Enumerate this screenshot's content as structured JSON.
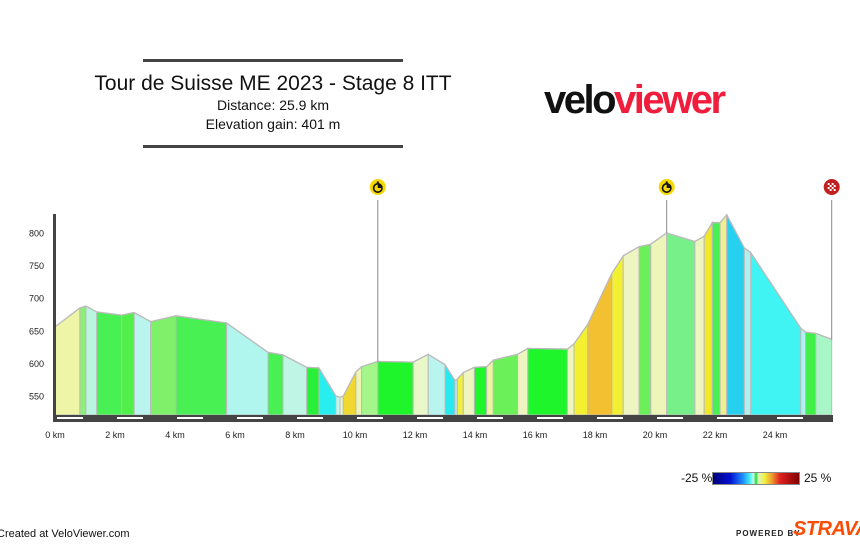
{
  "header": {
    "title": "Tour de Suisse ME 2023 - Stage 8 ITT",
    "distance": "Distance: 25.9 km",
    "elevation_gain": "Elevation gain: 401 m"
  },
  "logo": {
    "part1": "velo",
    "part2": "viewer",
    "colors": {
      "velo": "#111111",
      "viewer": "#f01e3c"
    }
  },
  "legend": {
    "min_label": "-25 %",
    "max_label": "25 %"
  },
  "footer": {
    "created": "Created at VeloViewer.com",
    "powered_by": "POWERED BY",
    "brand": "STRAVA"
  },
  "chart_data": {
    "type": "area",
    "xlim": [
      0,
      25.9
    ],
    "ylim": [
      520,
      830
    ],
    "x_ticks": [
      0,
      2,
      4,
      6,
      8,
      10,
      12,
      14,
      16,
      18,
      20,
      22,
      24
    ],
    "x_tick_labels": [
      "0 km",
      "2 km",
      "4 km",
      "6 km",
      "8 km",
      "10 km",
      "12 km",
      "14 km",
      "16 km",
      "18 km",
      "20 km",
      "22 km",
      "24 km"
    ],
    "y_ticks": [
      550,
      600,
      650,
      700,
      750,
      800
    ],
    "y_tick_labels": [
      "550",
      "600",
      "650",
      "700",
      "750",
      "800"
    ],
    "grid": false,
    "points": [
      [
        0,
        656
      ],
      [
        0.83,
        685
      ],
      [
        1.03,
        688
      ],
      [
        1.39,
        679
      ],
      [
        2.22,
        674
      ],
      [
        2.64,
        678
      ],
      [
        3.19,
        664
      ],
      [
        4.03,
        673
      ],
      [
        5.72,
        662
      ],
      [
        7.1,
        617
      ],
      [
        7.6,
        613
      ],
      [
        8.39,
        594
      ],
      [
        8.8,
        593
      ],
      [
        9.36,
        550
      ],
      [
        9.5,
        548
      ],
      [
        9.61,
        550
      ],
      [
        10.03,
        587
      ],
      [
        10.22,
        595
      ],
      [
        10.76,
        603
      ],
      [
        11.94,
        602
      ],
      [
        12.44,
        614
      ],
      [
        13.0,
        598
      ],
      [
        13.33,
        574
      ],
      [
        13.41,
        576
      ],
      [
        13.61,
        586
      ],
      [
        13.98,
        594
      ],
      [
        14.39,
        595
      ],
      [
        14.61,
        605
      ],
      [
        15.42,
        614
      ],
      [
        15.76,
        623
      ],
      [
        17.08,
        622
      ],
      [
        17.3,
        630
      ],
      [
        17.76,
        660
      ],
      [
        18.56,
        738
      ],
      [
        18.94,
        765
      ],
      [
        19.47,
        779
      ],
      [
        19.86,
        783
      ],
      [
        20.39,
        800
      ],
      [
        21.33,
        787
      ],
      [
        21.64,
        795
      ],
      [
        21.91,
        816
      ],
      [
        22.17,
        816
      ],
      [
        22.39,
        828
      ],
      [
        22.98,
        777
      ],
      [
        23.19,
        770
      ],
      [
        24.86,
        654
      ],
      [
        25.02,
        648
      ],
      [
        25.36,
        646
      ],
      [
        25.89,
        637
      ]
    ],
    "segment_colors": [
      "#eef5a6",
      "#90ee78",
      "#b9f5e0",
      "#48f054",
      "#50f048",
      "#b9f5ee",
      "#7ef06a",
      "#48f054",
      "#b0f5ee",
      "#48f054",
      "#bff5e4",
      "#28f038",
      "#28eef0",
      "#c0f5f0",
      "#e6f7c0",
      "#f0d830",
      "#eef5b0",
      "#a4f58a",
      "#1ef52a",
      "#e8f8c8",
      "#b9f5ee",
      "#28e8f0",
      "#c0f0f0",
      "#f0f040",
      "#eef5c0",
      "#1ef52a",
      "#eef5a0",
      "#6cf05a",
      "#eef5c0",
      "#1ef52a",
      "#eef5c0",
      "#f2f030",
      "#f2c030",
      "#f2f030",
      "#eef5c0",
      "#6cf05a",
      "#eef5b8",
      "#78f08a",
      "#eef5c0",
      "#f0e828",
      "#48f054",
      "#eef090",
      "#28d0f0",
      "#b0f0f0",
      "#40f4f4",
      "#b0f0f0",
      "#40f048",
      "#a8f5c8"
    ],
    "markers": [
      {
        "km": 10.76,
        "icon": "stopwatch-icon",
        "color": "#f5d800"
      },
      {
        "km": 20.39,
        "icon": "stopwatch-icon",
        "color": "#f5d800"
      },
      {
        "km": 25.89,
        "icon": "checkered-flag-icon",
        "color": "#c02020"
      }
    ]
  }
}
